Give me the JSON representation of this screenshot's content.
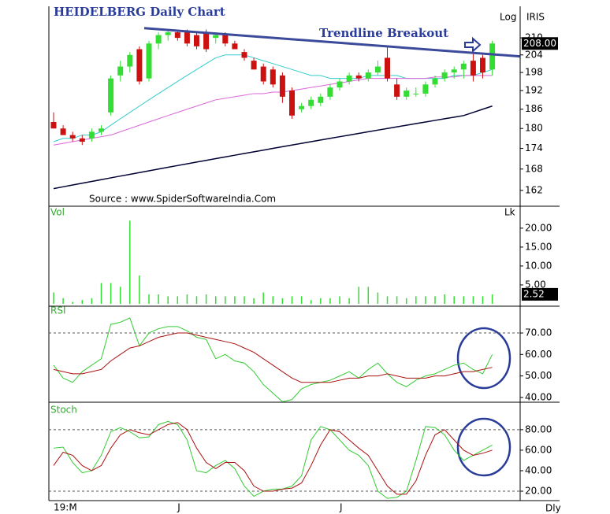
{
  "chart_data": [
    {
      "type": "candlestick",
      "title": "HEIDELBERG Daily Chart",
      "annotation": "Trendline Breakout",
      "scale_label": "Log",
      "symbol": "IRIS",
      "source": "Source : www.SpiderSoftwareIndia.Com",
      "period_label": "Dly",
      "categories": [
        "19:M",
        null,
        null,
        null,
        null,
        null,
        null,
        null,
        null,
        null,
        null,
        null,
        null,
        "J",
        null,
        null,
        null,
        null,
        null,
        null,
        null,
        null,
        null,
        null,
        null,
        null,
        null,
        null,
        null,
        null,
        "J",
        null,
        null,
        null,
        null,
        null,
        null,
        null,
        null,
        null,
        null,
        null,
        null,
        null,
        null,
        null,
        null
      ],
      "open": [
        182,
        180,
        178,
        177,
        177,
        179,
        185,
        197,
        200,
        206,
        196,
        208,
        211,
        212,
        212,
        211,
        212,
        210,
        211,
        208,
        205,
        202,
        200,
        199,
        197,
        192,
        186,
        187,
        188,
        190,
        193,
        195,
        197,
        196,
        198,
        203,
        194,
        190,
        191,
        191,
        194,
        196,
        198,
        199,
        202,
        203,
        199
      ],
      "high": [
        185,
        181,
        179,
        178,
        180,
        181,
        197,
        202,
        205,
        207,
        209,
        212,
        213,
        213,
        213,
        212,
        213,
        212,
        212,
        209,
        206,
        203,
        201,
        200,
        198,
        193,
        188,
        190,
        191,
        194,
        196,
        198,
        198,
        199,
        202,
        207,
        196,
        193,
        193,
        195,
        197,
        199,
        200,
        202,
        205,
        204,
        209
      ],
      "low": [
        180,
        178,
        176,
        175,
        176,
        178,
        184,
        195,
        198,
        194,
        195,
        206,
        209,
        209,
        207,
        206,
        205,
        208,
        207,
        206,
        202,
        199,
        194,
        193,
        188,
        183,
        185,
        186,
        187,
        189,
        192,
        194,
        195,
        195,
        197,
        195,
        189,
        189,
        190,
        190,
        193,
        195,
        196,
        196,
        195,
        196,
        197
      ],
      "close": [
        180,
        178,
        177,
        176,
        179,
        180,
        196,
        200,
        204,
        195,
        208,
        211,
        212,
        210,
        208,
        207,
        206,
        211,
        208,
        206,
        203,
        199,
        195,
        194,
        190,
        184,
        187,
        189,
        190,
        193,
        195,
        197,
        196,
        198,
        200,
        196,
        190,
        192,
        191,
        194,
        196,
        198,
        199,
        201,
        197,
        198,
        208
      ],
      "last_value": {
        "value": 208,
        "label": "208.00"
      },
      "up_color": "#33dd33",
      "down_color": "#cc1111",
      "series": [
        {
          "color": "#33cccc",
          "values": [
            176,
            177,
            177,
            178,
            178,
            179,
            181,
            183,
            185,
            187,
            189,
            191,
            193,
            195,
            197,
            199,
            201,
            203,
            204,
            204,
            204,
            203,
            202,
            201,
            200,
            199,
            198,
            197,
            197,
            196,
            196,
            196,
            196,
            197,
            197,
            197,
            197,
            196,
            196,
            196,
            196,
            196,
            197,
            197,
            197,
            198,
            199
          ]
        },
        {
          "color": "#dd66dd",
          "values": [
            175,
            175.5,
            176,
            176.5,
            177,
            177.5,
            178,
            179,
            180,
            181,
            182,
            183,
            184,
            185,
            186,
            187,
            188,
            189,
            189.5,
            190,
            190.5,
            191,
            191,
            191.5,
            191.5,
            192,
            192.5,
            193,
            193.5,
            194,
            194.5,
            195,
            195.5,
            196,
            196,
            196,
            196,
            196,
            196,
            196,
            196.5,
            196.5,
            196.5,
            197,
            197,
            197,
            197
          ]
        },
        {
          "color": "#000033",
          "values": [
            162.5,
            163,
            163.5,
            164,
            164.5,
            165,
            165.5,
            166,
            166.5,
            167,
            167.5,
            168,
            168.5,
            169,
            169.5,
            170,
            170.5,
            171,
            171.5,
            172,
            172.5,
            173,
            173.5,
            174,
            174.5,
            175,
            175.5,
            176,
            176.5,
            177,
            177.5,
            178,
            178.5,
            179,
            179.5,
            180,
            180.5,
            181,
            181.5,
            182,
            182.5,
            183,
            183.5,
            184,
            185,
            186,
            187
          ]
        }
      ],
      "trendline": {
        "color": "#3b4a9a",
        "x": [
          9.5,
          48.9
        ],
        "values": [
          213.5,
          203.5
        ]
      },
      "log_scale": true,
      "ylim": [
        157.7,
        221
      ],
      "yticks": [
        210,
        204,
        198,
        192,
        186,
        180,
        174,
        168,
        162
      ]
    },
    {
      "type": "bar",
      "title": "Vol",
      "unit": "Lk",
      "color": "#33dd33",
      "values": [
        3,
        1.5,
        0.5,
        1,
        1.5,
        5.5,
        5.5,
        4.5,
        22,
        7.5,
        2.5,
        2.5,
        2,
        2,
        2.5,
        2,
        2.5,
        2,
        2,
        2,
        2,
        1.5,
        3,
        2,
        1.5,
        2,
        2,
        1,
        1.5,
        1.5,
        2,
        1.5,
        4.5,
        4.5,
        3,
        2,
        2,
        1.5,
        2,
        2,
        2,
        2.5,
        2,
        2,
        2,
        2,
        2.52
      ],
      "last_value": {
        "value": 2.52,
        "label": "2.52"
      },
      "ylim": [
        0,
        25.8
      ],
      "yticks": [
        {
          "value": 5,
          "label": "5.00"
        },
        {
          "value": 10,
          "label": "10.00"
        },
        {
          "value": 15,
          "label": "15.00"
        },
        {
          "value": 20,
          "label": "20.00"
        }
      ]
    },
    {
      "type": "line",
      "title": "RSI",
      "series": [
        {
          "color": "#33cc33",
          "values": [
            55,
            49,
            47,
            52,
            55,
            58,
            74,
            75,
            77,
            64,
            70,
            72,
            73,
            73,
            71,
            68,
            67,
            58,
            60,
            57,
            56,
            52,
            46,
            42,
            38,
            39,
            44,
            46,
            47,
            48,
            50,
            52,
            49,
            53,
            56,
            51,
            47,
            45,
            48,
            50,
            51,
            53,
            55,
            56,
            53,
            51,
            60
          ]
        },
        {
          "color": "#aa1111",
          "values": [
            53,
            52,
            51,
            51,
            52,
            53,
            57,
            60,
            63,
            64,
            66,
            68,
            69,
            70,
            70,
            69,
            68,
            67,
            66,
            65,
            63,
            61,
            58,
            55,
            52,
            49,
            47,
            47,
            47,
            47,
            48,
            49,
            49,
            50,
            50,
            51,
            50,
            49,
            49,
            49,
            50,
            50,
            51,
            52,
            52,
            53,
            54
          ]
        }
      ],
      "levels": [
        70
      ],
      "ylim": [
        37.4,
        82.1
      ],
      "yticks": [
        {
          "value": 40,
          "label": "40.00"
        },
        {
          "value": 50,
          "label": "50.00"
        },
        {
          "value": 60,
          "label": "60.00"
        },
        {
          "value": 70,
          "label": "70.00"
        }
      ]
    },
    {
      "type": "line",
      "title": "Stoch",
      "series": [
        {
          "color": "#33cc33",
          "values": [
            62,
            63,
            48,
            38,
            40,
            55,
            78,
            82,
            78,
            72,
            73,
            85,
            88,
            85,
            70,
            40,
            38,
            45,
            50,
            42,
            25,
            15,
            20,
            22,
            22,
            25,
            35,
            70,
            83,
            80,
            70,
            60,
            55,
            45,
            20,
            13,
            14,
            20,
            50,
            83,
            82,
            75,
            60,
            50,
            55,
            60,
            65
          ]
        },
        {
          "color": "#aa1111",
          "values": [
            45,
            58,
            55,
            45,
            40,
            45,
            62,
            75,
            80,
            77,
            75,
            80,
            85,
            87,
            80,
            62,
            48,
            42,
            48,
            48,
            40,
            25,
            20,
            20,
            22,
            23,
            28,
            45,
            65,
            80,
            78,
            70,
            62,
            55,
            40,
            25,
            17,
            17,
            30,
            55,
            75,
            80,
            70,
            60,
            55,
            57,
            60
          ]
        }
      ],
      "levels": [
        80,
        20
      ],
      "ylim": [
        10.8,
        106
      ],
      "yticks": [
        {
          "value": 20,
          "label": "20.00"
        },
        {
          "value": 40,
          "label": "40.00"
        },
        {
          "value": 60,
          "label": "60.00"
        },
        {
          "value": 80,
          "label": "80.00"
        }
      ]
    }
  ]
}
